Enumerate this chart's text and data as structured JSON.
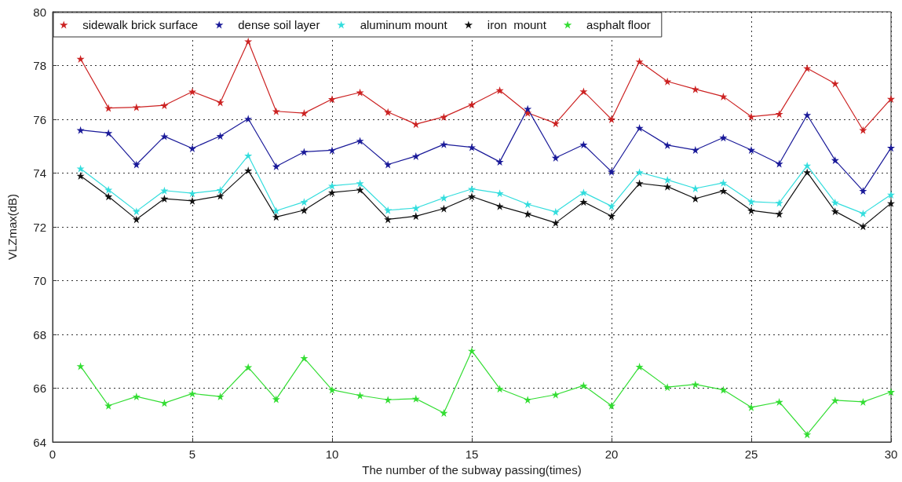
{
  "chart_data": {
    "type": "line",
    "xlabel": "The number of the subway passing(times)",
    "ylabel": "VLZmax(dB)",
    "x": [
      1,
      2,
      3,
      4,
      5,
      6,
      7,
      8,
      9,
      10,
      11,
      12,
      13,
      14,
      15,
      16,
      17,
      18,
      19,
      20,
      21,
      22,
      23,
      24,
      25,
      26,
      27,
      28,
      29,
      30
    ],
    "xlim": [
      0,
      30
    ],
    "xticks": [
      0,
      5,
      10,
      15,
      20,
      25,
      30
    ],
    "ylim": [
      64,
      80
    ],
    "yticks": [
      64,
      66,
      68,
      70,
      72,
      74,
      76,
      78,
      80
    ],
    "grid": true,
    "legend": "top",
    "marker": "star",
    "line_style": "solid",
    "series": [
      {
        "name": "sidewalk brick surface",
        "color": "#cc2222",
        "values": [
          78.25,
          76.42,
          76.45,
          76.52,
          77.03,
          76.63,
          78.9,
          76.3,
          76.23,
          76.75,
          77.0,
          76.27,
          75.82,
          76.09,
          76.55,
          77.08,
          76.24,
          75.85,
          77.04,
          76.0,
          78.15,
          77.41,
          77.12,
          76.85,
          76.1,
          76.2,
          77.9,
          77.33,
          75.6,
          76.76
        ]
      },
      {
        "name": "dense soil layer",
        "color": "#1a1a99",
        "values": [
          75.6,
          75.49,
          74.32,
          75.37,
          74.92,
          75.38,
          76.02,
          74.25,
          74.79,
          74.85,
          75.2,
          74.32,
          74.63,
          75.07,
          74.96,
          74.42,
          76.39,
          74.57,
          75.06,
          74.05,
          75.68,
          75.04,
          74.86,
          75.32,
          74.86,
          74.35,
          76.16,
          74.48,
          73.34,
          74.94
        ]
      },
      {
        "name": "aluminum mount",
        "color": "#33dddd",
        "values": [
          74.17,
          73.38,
          72.58,
          73.35,
          73.25,
          73.37,
          74.65,
          72.6,
          72.93,
          73.53,
          73.62,
          72.62,
          72.7,
          73.08,
          73.41,
          73.25,
          72.84,
          72.56,
          73.28,
          72.77,
          74.03,
          73.75,
          73.43,
          73.64,
          72.94,
          72.89,
          74.28,
          72.91,
          72.5,
          73.2
        ]
      },
      {
        "name": "iron  mount",
        "color": "#111111",
        "values": [
          73.9,
          73.13,
          72.28,
          73.05,
          72.97,
          73.15,
          74.1,
          72.37,
          72.62,
          73.28,
          73.38,
          72.28,
          72.4,
          72.68,
          73.13,
          72.77,
          72.48,
          72.15,
          72.93,
          72.4,
          73.62,
          73.5,
          73.05,
          73.34,
          72.61,
          72.48,
          74.03,
          72.58,
          72.02,
          72.88
        ]
      },
      {
        "name": "asphalt floor",
        "color": "#33dd33",
        "values": [
          66.82,
          65.35,
          65.69,
          65.45,
          65.8,
          65.69,
          66.78,
          65.59,
          67.12,
          65.94,
          65.73,
          65.57,
          65.61,
          65.08,
          67.39,
          65.98,
          65.57,
          65.76,
          66.1,
          65.35,
          66.8,
          66.04,
          66.14,
          65.94,
          65.29,
          65.49,
          64.28,
          65.55,
          65.49,
          65.86
        ]
      }
    ]
  }
}
